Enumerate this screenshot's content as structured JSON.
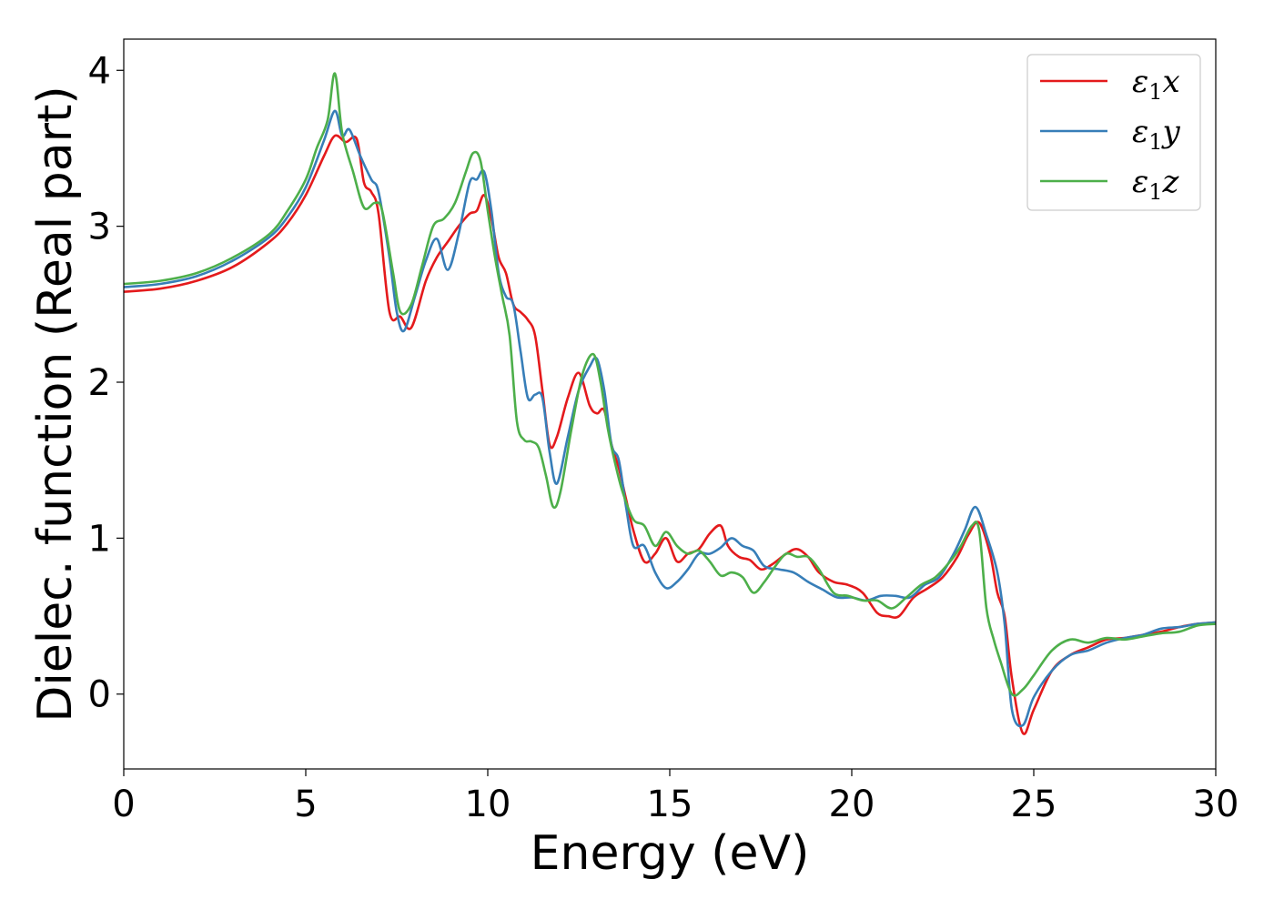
{
  "chart_data": {
    "type": "line",
    "title": "",
    "xlabel": "Energy (eV)",
    "ylabel": "Dielec. function (Real part)",
    "xlim": [
      0,
      30
    ],
    "ylim": [
      -0.48,
      4.2
    ],
    "xticks": [
      0,
      5,
      10,
      15,
      20,
      25,
      30
    ],
    "yticks": [
      0,
      1,
      2,
      3,
      4
    ],
    "grid": false,
    "legend_position": "upper-right",
    "series": [
      {
        "name": "ε₁x",
        "legend_main": "ε",
        "legend_sub": "1",
        "legend_var": "x",
        "color": "#e41a1c",
        "points": [
          [
            0,
            2.58
          ],
          [
            1,
            2.6
          ],
          [
            2,
            2.65
          ],
          [
            3,
            2.74
          ],
          [
            4,
            2.9
          ],
          [
            4.5,
            3.02
          ],
          [
            5,
            3.2
          ],
          [
            5.5,
            3.45
          ],
          [
            5.8,
            3.58
          ],
          [
            6.1,
            3.54
          ],
          [
            6.4,
            3.56
          ],
          [
            6.6,
            3.28
          ],
          [
            6.8,
            3.22
          ],
          [
            7.0,
            3.08
          ],
          [
            7.3,
            2.45
          ],
          [
            7.6,
            2.42
          ],
          [
            7.9,
            2.35
          ],
          [
            8.3,
            2.65
          ],
          [
            8.6,
            2.8
          ],
          [
            8.9,
            2.9
          ],
          [
            9.2,
            3.0
          ],
          [
            9.5,
            3.08
          ],
          [
            9.7,
            3.1
          ],
          [
            9.9,
            3.2
          ],
          [
            10.1,
            3.05
          ],
          [
            10.3,
            2.8
          ],
          [
            10.5,
            2.7
          ],
          [
            10.7,
            2.5
          ],
          [
            10.9,
            2.45
          ],
          [
            11.1,
            2.4
          ],
          [
            11.3,
            2.3
          ],
          [
            11.5,
            1.95
          ],
          [
            11.7,
            1.6
          ],
          [
            11.9,
            1.65
          ],
          [
            12.2,
            1.9
          ],
          [
            12.5,
            2.06
          ],
          [
            12.8,
            1.85
          ],
          [
            13.0,
            1.8
          ],
          [
            13.2,
            1.82
          ],
          [
            13.4,
            1.6
          ],
          [
            13.6,
            1.45
          ],
          [
            13.8,
            1.25
          ],
          [
            14.0,
            1.05
          ],
          [
            14.3,
            0.85
          ],
          [
            14.6,
            0.9
          ],
          [
            14.9,
            1.0
          ],
          [
            15.2,
            0.85
          ],
          [
            15.5,
            0.9
          ],
          [
            15.8,
            0.93
          ],
          [
            16.1,
            1.03
          ],
          [
            16.4,
            1.08
          ],
          [
            16.6,
            0.95
          ],
          [
            16.9,
            0.88
          ],
          [
            17.2,
            0.86
          ],
          [
            17.5,
            0.8
          ],
          [
            17.8,
            0.83
          ],
          [
            18.2,
            0.9
          ],
          [
            18.5,
            0.93
          ],
          [
            18.8,
            0.88
          ],
          [
            19.1,
            0.78
          ],
          [
            19.5,
            0.72
          ],
          [
            19.9,
            0.7
          ],
          [
            20.3,
            0.65
          ],
          [
            20.7,
            0.52
          ],
          [
            21.0,
            0.5
          ],
          [
            21.3,
            0.5
          ],
          [
            21.7,
            0.62
          ],
          [
            22.1,
            0.68
          ],
          [
            22.5,
            0.75
          ],
          [
            22.9,
            0.88
          ],
          [
            23.2,
            1.02
          ],
          [
            23.5,
            1.1
          ],
          [
            23.8,
            0.9
          ],
          [
            24.0,
            0.65
          ],
          [
            24.2,
            0.5
          ],
          [
            24.4,
            0.1
          ],
          [
            24.7,
            -0.25
          ],
          [
            25.0,
            -0.1
          ],
          [
            25.5,
            0.15
          ],
          [
            26,
            0.25
          ],
          [
            26.5,
            0.3
          ],
          [
            27,
            0.35
          ],
          [
            27.5,
            0.36
          ],
          [
            28,
            0.38
          ],
          [
            28.5,
            0.4
          ],
          [
            29,
            0.43
          ],
          [
            29.5,
            0.45
          ],
          [
            30,
            0.46
          ]
        ]
      },
      {
        "name": "ε₁y",
        "legend_main": "ε",
        "legend_sub": "1",
        "legend_var": "y",
        "color": "#377eb8",
        "points": [
          [
            0,
            2.61
          ],
          [
            1,
            2.63
          ],
          [
            2,
            2.68
          ],
          [
            3,
            2.78
          ],
          [
            4,
            2.93
          ],
          [
            4.5,
            3.06
          ],
          [
            5,
            3.25
          ],
          [
            5.5,
            3.55
          ],
          [
            5.8,
            3.74
          ],
          [
            6.0,
            3.58
          ],
          [
            6.2,
            3.62
          ],
          [
            6.5,
            3.45
          ],
          [
            6.8,
            3.3
          ],
          [
            7.0,
            3.22
          ],
          [
            7.3,
            2.8
          ],
          [
            7.5,
            2.45
          ],
          [
            7.7,
            2.33
          ],
          [
            8.0,
            2.55
          ],
          [
            8.3,
            2.78
          ],
          [
            8.6,
            2.92
          ],
          [
            8.9,
            2.72
          ],
          [
            9.2,
            2.95
          ],
          [
            9.5,
            3.28
          ],
          [
            9.7,
            3.3
          ],
          [
            9.9,
            3.35
          ],
          [
            10.1,
            3.1
          ],
          [
            10.3,
            2.7
          ],
          [
            10.5,
            2.55
          ],
          [
            10.7,
            2.5
          ],
          [
            10.9,
            2.2
          ],
          [
            11.1,
            1.9
          ],
          [
            11.3,
            1.92
          ],
          [
            11.5,
            1.9
          ],
          [
            11.7,
            1.55
          ],
          [
            11.9,
            1.35
          ],
          [
            12.2,
            1.65
          ],
          [
            12.5,
            1.95
          ],
          [
            12.8,
            2.1
          ],
          [
            13.0,
            2.15
          ],
          [
            13.2,
            1.95
          ],
          [
            13.4,
            1.6
          ],
          [
            13.6,
            1.5
          ],
          [
            13.8,
            1.2
          ],
          [
            14.0,
            0.95
          ],
          [
            14.3,
            0.95
          ],
          [
            14.6,
            0.78
          ],
          [
            14.9,
            0.68
          ],
          [
            15.2,
            0.72
          ],
          [
            15.5,
            0.8
          ],
          [
            15.8,
            0.9
          ],
          [
            16.1,
            0.9
          ],
          [
            16.4,
            0.94
          ],
          [
            16.7,
            1.0
          ],
          [
            17.0,
            0.95
          ],
          [
            17.3,
            0.92
          ],
          [
            17.6,
            0.82
          ],
          [
            18.0,
            0.8
          ],
          [
            18.4,
            0.78
          ],
          [
            18.8,
            0.72
          ],
          [
            19.2,
            0.67
          ],
          [
            19.6,
            0.62
          ],
          [
            20.0,
            0.62
          ],
          [
            20.4,
            0.6
          ],
          [
            20.8,
            0.63
          ],
          [
            21.2,
            0.63
          ],
          [
            21.6,
            0.62
          ],
          [
            22.0,
            0.7
          ],
          [
            22.4,
            0.75
          ],
          [
            22.8,
            0.9
          ],
          [
            23.1,
            1.05
          ],
          [
            23.4,
            1.2
          ],
          [
            23.7,
            1.02
          ],
          [
            24.0,
            0.78
          ],
          [
            24.2,
            0.45
          ],
          [
            24.4,
            -0.1
          ],
          [
            24.7,
            -0.2
          ],
          [
            25.0,
            -0.02
          ],
          [
            25.5,
            0.15
          ],
          [
            26,
            0.25
          ],
          [
            26.5,
            0.28
          ],
          [
            27,
            0.33
          ],
          [
            27.5,
            0.36
          ],
          [
            28,
            0.38
          ],
          [
            28.5,
            0.42
          ],
          [
            29,
            0.43
          ],
          [
            29.5,
            0.45
          ],
          [
            30,
            0.46
          ]
        ]
      },
      {
        "name": "ε₁z",
        "legend_main": "ε",
        "legend_sub": "1",
        "legend_var": "z",
        "color": "#4daf4a",
        "points": [
          [
            0,
            2.63
          ],
          [
            1,
            2.65
          ],
          [
            2,
            2.7
          ],
          [
            3,
            2.8
          ],
          [
            4,
            2.95
          ],
          [
            4.5,
            3.1
          ],
          [
            5,
            3.3
          ],
          [
            5.3,
            3.5
          ],
          [
            5.6,
            3.68
          ],
          [
            5.8,
            3.98
          ],
          [
            6.0,
            3.6
          ],
          [
            6.3,
            3.35
          ],
          [
            6.6,
            3.12
          ],
          [
            6.9,
            3.15
          ],
          [
            7.1,
            3.1
          ],
          [
            7.4,
            2.7
          ],
          [
            7.6,
            2.45
          ],
          [
            7.9,
            2.5
          ],
          [
            8.2,
            2.75
          ],
          [
            8.5,
            3.0
          ],
          [
            8.8,
            3.05
          ],
          [
            9.1,
            3.15
          ],
          [
            9.4,
            3.35
          ],
          [
            9.6,
            3.47
          ],
          [
            9.8,
            3.42
          ],
          [
            10.0,
            3.1
          ],
          [
            10.2,
            2.8
          ],
          [
            10.4,
            2.55
          ],
          [
            10.6,
            2.3
          ],
          [
            10.8,
            1.75
          ],
          [
            11.0,
            1.63
          ],
          [
            11.2,
            1.62
          ],
          [
            11.4,
            1.58
          ],
          [
            11.6,
            1.4
          ],
          [
            11.8,
            1.2
          ],
          [
            12.0,
            1.3
          ],
          [
            12.3,
            1.7
          ],
          [
            12.6,
            2.05
          ],
          [
            12.9,
            2.18
          ],
          [
            13.1,
            2.0
          ],
          [
            13.3,
            1.7
          ],
          [
            13.5,
            1.48
          ],
          [
            13.7,
            1.3
          ],
          [
            14.0,
            1.12
          ],
          [
            14.3,
            1.08
          ],
          [
            14.6,
            0.95
          ],
          [
            14.9,
            1.04
          ],
          [
            15.2,
            0.95
          ],
          [
            15.5,
            0.9
          ],
          [
            15.8,
            0.92
          ],
          [
            16.1,
            0.85
          ],
          [
            16.4,
            0.76
          ],
          [
            16.7,
            0.78
          ],
          [
            17.0,
            0.75
          ],
          [
            17.3,
            0.65
          ],
          [
            17.6,
            0.72
          ],
          [
            17.9,
            0.82
          ],
          [
            18.2,
            0.9
          ],
          [
            18.5,
            0.88
          ],
          [
            18.8,
            0.88
          ],
          [
            19.1,
            0.8
          ],
          [
            19.5,
            0.65
          ],
          [
            19.9,
            0.63
          ],
          [
            20.3,
            0.6
          ],
          [
            20.7,
            0.6
          ],
          [
            21.1,
            0.55
          ],
          [
            21.5,
            0.62
          ],
          [
            21.9,
            0.7
          ],
          [
            22.3,
            0.75
          ],
          [
            22.7,
            0.85
          ],
          [
            23.0,
            0.95
          ],
          [
            23.3,
            1.08
          ],
          [
            23.5,
            1.05
          ],
          [
            23.7,
            0.55
          ],
          [
            23.9,
            0.35
          ],
          [
            24.1,
            0.2
          ],
          [
            24.4,
            0.0
          ],
          [
            24.7,
            0.03
          ],
          [
            25.0,
            0.12
          ],
          [
            25.5,
            0.28
          ],
          [
            26,
            0.35
          ],
          [
            26.5,
            0.33
          ],
          [
            27,
            0.36
          ],
          [
            27.5,
            0.35
          ],
          [
            28,
            0.37
          ],
          [
            28.5,
            0.39
          ],
          [
            29,
            0.4
          ],
          [
            29.5,
            0.44
          ],
          [
            30,
            0.45
          ]
        ]
      }
    ]
  }
}
